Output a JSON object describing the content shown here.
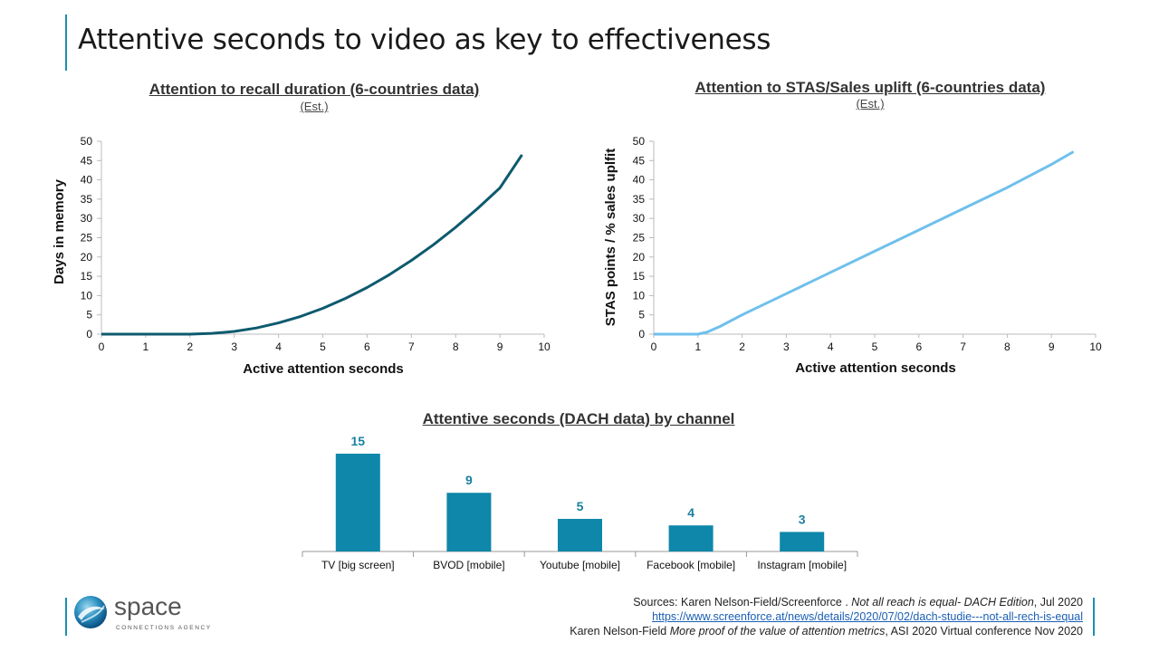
{
  "page": {
    "title": "Attentive seconds to video as key to effectiveness"
  },
  "charts": {
    "recall": {
      "title": "Attention to recall duration (6-countries data)",
      "subtitle": "(Est.)"
    },
    "stas": {
      "title": "Attention to STAS/Sales uplift (6-countries data)",
      "subtitle": "(Est.)"
    },
    "dach": {
      "title": "Attentive seconds (DACH data) by channel"
    }
  },
  "colors": {
    "accent": "#1b8fb0",
    "recall_line": "#0d5a6e",
    "stas_line": "#6fc0ec",
    "bar": "#0e87aa",
    "bar_label": "#1a7fa0"
  },
  "chart_data": [
    {
      "type": "line",
      "title": "Attention to recall duration (6-countries data)",
      "subtitle": "(Est.)",
      "xlabel": "Active attention seconds",
      "ylabel": "Days in memory",
      "xlim": [
        0,
        10
      ],
      "ylim": [
        0,
        50
      ],
      "xticks": [
        0,
        1,
        2,
        3,
        4,
        5,
        6,
        7,
        8,
        9,
        10
      ],
      "yticks": [
        0,
        5,
        10,
        15,
        20,
        25,
        30,
        35,
        40,
        45,
        50
      ],
      "grid": false,
      "series": [
        {
          "x": [
            0,
            1,
            2,
            2.5,
            3,
            3.5,
            4,
            4.5,
            5,
            5.5,
            6,
            6.5,
            7,
            7.5,
            8,
            8.5,
            9,
            9.5
          ],
          "y": [
            0,
            0,
            0,
            0.2,
            0.7,
            1.6,
            2.9,
            4.6,
            6.7,
            9.2,
            12.1,
            15.4,
            19.1,
            23.2,
            27.7,
            32.6,
            37.9,
            46.5
          ]
        }
      ]
    },
    {
      "type": "line",
      "title": "Attention to STAS/Sales uplift (6-countries data)",
      "subtitle": "(Est.)",
      "xlabel": "Active attention seconds",
      "ylabel": "STAS points / % sales uplfit",
      "xlim": [
        0,
        10
      ],
      "ylim": [
        0,
        50
      ],
      "xticks": [
        0,
        1,
        2,
        3,
        4,
        5,
        6,
        7,
        8,
        9,
        10
      ],
      "yticks": [
        0,
        5,
        10,
        15,
        20,
        25,
        30,
        35,
        40,
        45,
        50
      ],
      "grid": false,
      "series": [
        {
          "x": [
            0,
            0.5,
            1,
            1.2,
            1.5,
            2,
            3,
            4,
            5,
            6,
            7,
            8,
            9,
            9.5
          ],
          "y": [
            0,
            0,
            0,
            0.5,
            2,
            5,
            10.5,
            16,
            21.5,
            27,
            32.5,
            38,
            44,
            47.3
          ]
        }
      ]
    },
    {
      "type": "bar",
      "title": "Attentive seconds (DACH data) by channel",
      "categories": [
        "TV [big screen]",
        "BVOD [mobile]",
        "Youtube [mobile]",
        "Facebook [mobile]",
        "Instagram [mobile]"
      ],
      "values": [
        15,
        9,
        5,
        4,
        3
      ],
      "ylim": [
        0,
        15
      ]
    }
  ],
  "logo": {
    "brand": "space",
    "tagline": "CONNECTIONS AGENCY"
  },
  "sources": {
    "line1_prefix": "Sources: Karen Nelson-Field/Screenforce . ",
    "line1_italic": "Not all reach is equal- DACH Edition",
    "line1_suffix": ", Jul 2020",
    "line2_link": "https://www.screenforce.at/news/details/2020/07/02/dach-studie---not-all-rech-is-equal",
    "line3_prefix": "Karen Nelson-Field ",
    "line3_italic": "More proof  of the value of attention metrics",
    "line3_suffix": ", ASI 2020  Virtual conference Nov 2020"
  }
}
